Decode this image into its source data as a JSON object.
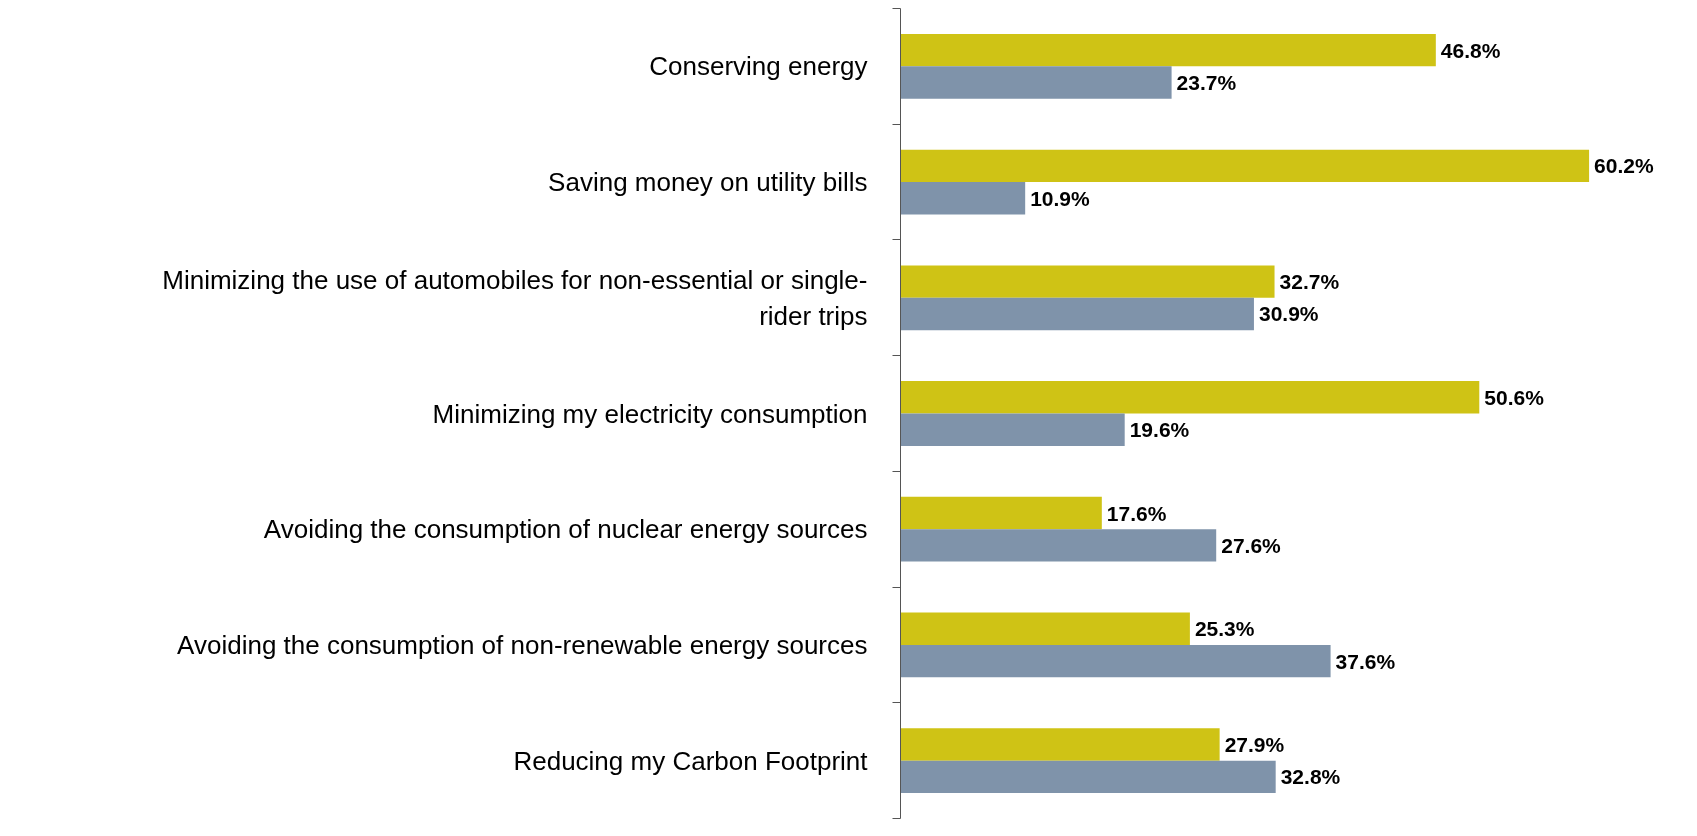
{
  "chart_data": {
    "type": "bar",
    "orientation": "horizontal",
    "categories": [
      "Conserving energy",
      "Saving money on utility bills",
      "Minimizing the use of automobiles for non-essential or single-rider trips",
      "Minimizing my electricity consumption",
      "Avoiding the consumption of nuclear energy sources",
      "Avoiding the consumption of non-renewable energy sources",
      "Reducing my Carbon Footprint"
    ],
    "series": [
      {
        "color": "#cfc315",
        "values": [
          46.8,
          60.2,
          32.7,
          50.6,
          17.6,
          25.3,
          27.9
        ],
        "value_labels": [
          "46.8%",
          "60.2%",
          "32.7%",
          "50.6%",
          "17.6%",
          "25.3%",
          "27.9%"
        ]
      },
      {
        "color": "#7f93aa",
        "values": [
          23.7,
          10.9,
          30.9,
          19.6,
          27.6,
          37.6,
          32.8
        ],
        "value_labels": [
          "23.7%",
          "10.9%",
          "30.9%",
          "19.6%",
          "27.6%",
          "37.6%",
          "32.8%"
        ]
      }
    ]
  }
}
